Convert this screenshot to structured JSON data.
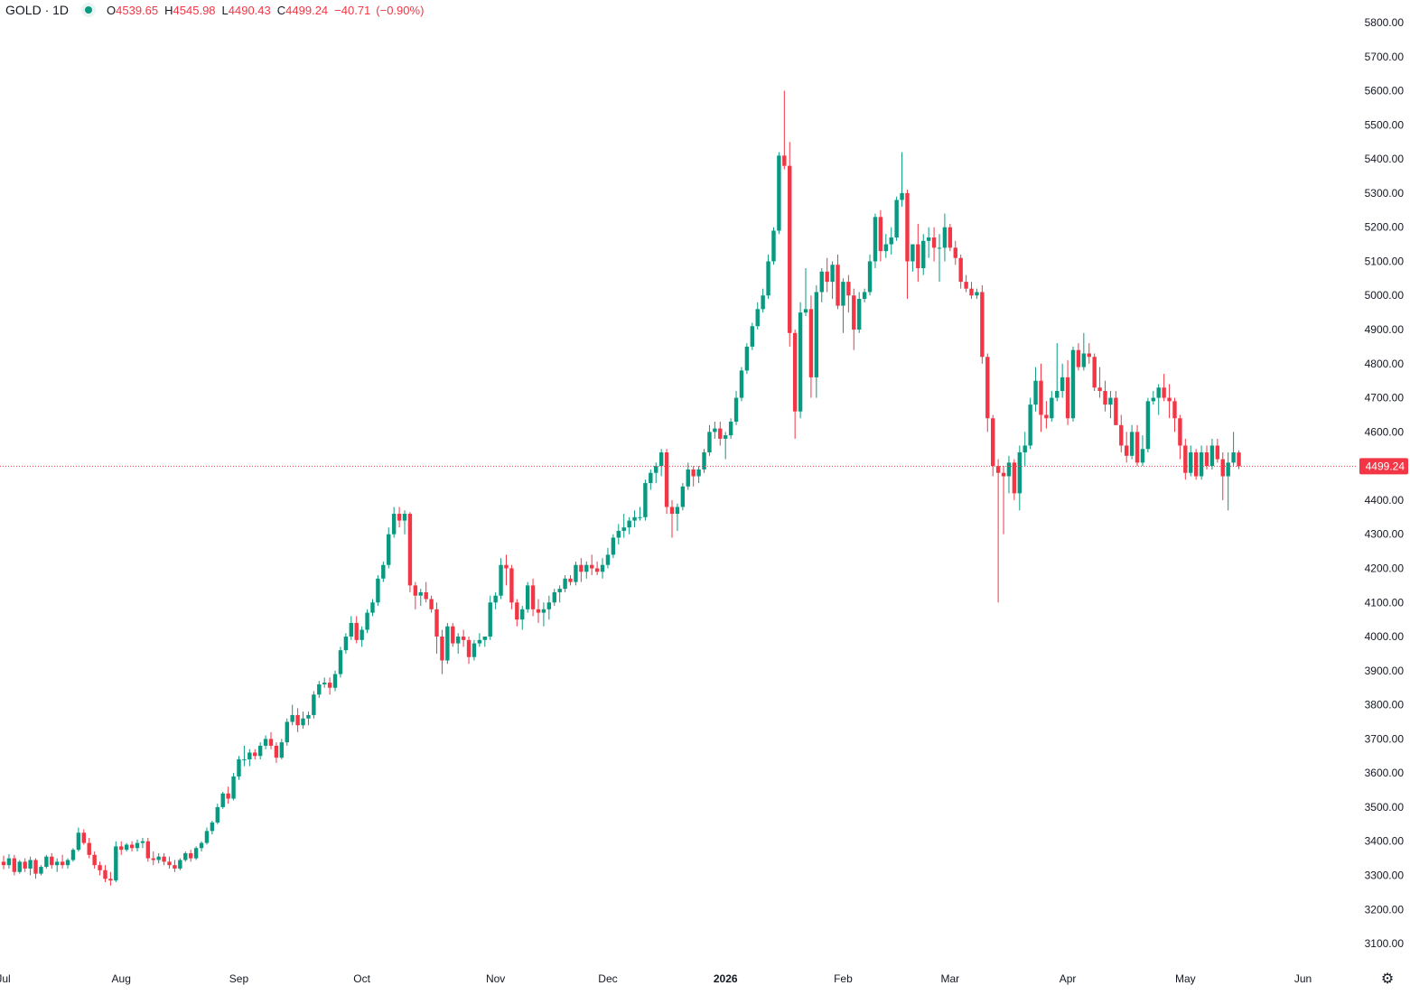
{
  "header": {
    "symbol": "GOLD · 1D",
    "open_label": "O",
    "open": "4539.65",
    "high_label": "H",
    "high": "4545.98",
    "low_label": "L",
    "low": "4490.43",
    "close_label": "C",
    "close": "4499.24",
    "change": "−40.71",
    "change_pct": "(−0.90%)"
  },
  "icons": {
    "status": "market-status-dot-icon",
    "settings": "gear-icon"
  },
  "colors": {
    "up": "#089981",
    "down": "#f23645",
    "text": "#131722",
    "price_line": "#f23645"
  },
  "chart_data": {
    "type": "candlestick",
    "title": "GOLD · 1D",
    "ylim": [
      3050,
      5850
    ],
    "y_ticks": [
      "5800.00",
      "5700.00",
      "5600.00",
      "5500.00",
      "5400.00",
      "5300.00",
      "5200.00",
      "5100.00",
      "5000.00",
      "4900.00",
      "4800.00",
      "4700.00",
      "4600.00",
      "4500.00",
      "4400.00",
      "4300.00",
      "4200.00",
      "4100.00",
      "4000.00",
      "3900.00",
      "3800.00",
      "3700.00",
      "3600.00",
      "3500.00",
      "3400.00",
      "3300.00",
      "3200.00",
      "3100.00"
    ],
    "x_ticks": [
      {
        "label": "Jul",
        "index": 0
      },
      {
        "label": "Aug",
        "index": 22
      },
      {
        "label": "Sep",
        "index": 44
      },
      {
        "label": "Oct",
        "index": 67
      },
      {
        "label": "Nov",
        "index": 92
      },
      {
        "label": "Dec",
        "index": 113
      },
      {
        "label": "2026",
        "index": 135
      },
      {
        "label": "Feb",
        "index": 157
      },
      {
        "label": "Mar",
        "index": 177
      },
      {
        "label": "Apr",
        "index": 199
      },
      {
        "label": "May",
        "index": 221
      },
      {
        "label": "Jun",
        "index": 243
      }
    ],
    "current_price": "4499.24",
    "grid": false,
    "candles": [
      [
        3340,
        3358,
        3318,
        3330
      ],
      [
        3330,
        3362,
        3320,
        3350
      ],
      [
        3350,
        3360,
        3300,
        3310
      ],
      [
        3310,
        3345,
        3305,
        3340
      ],
      [
        3340,
        3350,
        3310,
        3320
      ],
      [
        3320,
        3355,
        3300,
        3345
      ],
      [
        3345,
        3350,
        3290,
        3305
      ],
      [
        3305,
        3330,
        3300,
        3325
      ],
      [
        3325,
        3360,
        3320,
        3355
      ],
      [
        3355,
        3365,
        3320,
        3330
      ],
      [
        3330,
        3350,
        3310,
        3340
      ],
      [
        3340,
        3360,
        3320,
        3330
      ],
      [
        3330,
        3350,
        3320,
        3345
      ],
      [
        3345,
        3380,
        3340,
        3375
      ],
      [
        3375,
        3440,
        3370,
        3425
      ],
      [
        3425,
        3435,
        3390,
        3395
      ],
      [
        3395,
        3410,
        3350,
        3360
      ],
      [
        3360,
        3370,
        3320,
        3330
      ],
      [
        3330,
        3340,
        3300,
        3315
      ],
      [
        3315,
        3330,
        3280,
        3290
      ],
      [
        3290,
        3310,
        3270,
        3285
      ],
      [
        3285,
        3400,
        3280,
        3385
      ],
      [
        3385,
        3400,
        3360,
        3375
      ],
      [
        3375,
        3395,
        3370,
        3390
      ],
      [
        3390,
        3400,
        3370,
        3380
      ],
      [
        3380,
        3405,
        3370,
        3395
      ],
      [
        3395,
        3410,
        3380,
        3400
      ],
      [
        3400,
        3410,
        3340,
        3350
      ],
      [
        3350,
        3370,
        3330,
        3345
      ],
      [
        3345,
        3365,
        3335,
        3355
      ],
      [
        3355,
        3365,
        3330,
        3340
      ],
      [
        3340,
        3355,
        3320,
        3330
      ],
      [
        3330,
        3345,
        3310,
        3320
      ],
      [
        3320,
        3350,
        3315,
        3345
      ],
      [
        3345,
        3370,
        3340,
        3365
      ],
      [
        3365,
        3375,
        3340,
        3350
      ],
      [
        3350,
        3385,
        3345,
        3380
      ],
      [
        3380,
        3400,
        3370,
        3395
      ],
      [
        3395,
        3440,
        3390,
        3430
      ],
      [
        3430,
        3460,
        3420,
        3455
      ],
      [
        3455,
        3510,
        3450,
        3500
      ],
      [
        3500,
        3545,
        3495,
        3540
      ],
      [
        3540,
        3560,
        3510,
        3525
      ],
      [
        3525,
        3600,
        3520,
        3590
      ],
      [
        3590,
        3650,
        3580,
        3640
      ],
      [
        3640,
        3680,
        3620,
        3640
      ],
      [
        3640,
        3670,
        3620,
        3660
      ],
      [
        3660,
        3670,
        3640,
        3650
      ],
      [
        3650,
        3690,
        3640,
        3680
      ],
      [
        3680,
        3710,
        3670,
        3700
      ],
      [
        3700,
        3720,
        3670,
        3680
      ],
      [
        3680,
        3690,
        3630,
        3645
      ],
      [
        3645,
        3700,
        3640,
        3690
      ],
      [
        3690,
        3760,
        3680,
        3750
      ],
      [
        3750,
        3800,
        3740,
        3770
      ],
      [
        3770,
        3790,
        3720,
        3740
      ],
      [
        3740,
        3780,
        3730,
        3760
      ],
      [
        3760,
        3780,
        3740,
        3770
      ],
      [
        3770,
        3840,
        3760,
        3830
      ],
      [
        3830,
        3870,
        3820,
        3860
      ],
      [
        3860,
        3880,
        3850,
        3865
      ],
      [
        3865,
        3880,
        3830,
        3850
      ],
      [
        3850,
        3900,
        3840,
        3890
      ],
      [
        3890,
        3970,
        3880,
        3960
      ],
      [
        3960,
        4010,
        3950,
        4000
      ],
      [
        4000,
        4060,
        3990,
        4040
      ],
      [
        4040,
        4060,
        3980,
        3990
      ],
      [
        3990,
        4030,
        3970,
        4020
      ],
      [
        4020,
        4080,
        4010,
        4070
      ],
      [
        4070,
        4110,
        4060,
        4100
      ],
      [
        4100,
        4180,
        4090,
        4170
      ],
      [
        4170,
        4220,
        4160,
        4210
      ],
      [
        4210,
        4320,
        4200,
        4300
      ],
      [
        4300,
        4380,
        4290,
        4360
      ],
      [
        4360,
        4380,
        4320,
        4340
      ],
      [
        4340,
        4370,
        4300,
        4360
      ],
      [
        4360,
        4365,
        4130,
        4150
      ],
      [
        4150,
        4160,
        4080,
        4120
      ],
      [
        4120,
        4140,
        4090,
        4130
      ],
      [
        4130,
        4160,
        4100,
        4110
      ],
      [
        4110,
        4120,
        4070,
        4080
      ],
      [
        4080,
        4100,
        3950,
        4000
      ],
      [
        4000,
        4020,
        3890,
        3930
      ],
      [
        3930,
        4040,
        3920,
        4030
      ],
      [
        4030,
        4040,
        3970,
        3980
      ],
      [
        3980,
        4010,
        3950,
        4000
      ],
      [
        4000,
        4020,
        3970,
        3990
      ],
      [
        3990,
        4000,
        3920,
        3940
      ],
      [
        3940,
        3990,
        3930,
        3980
      ],
      [
        3980,
        4010,
        3970,
        3990
      ],
      [
        3990,
        4000,
        3970,
        4000
      ],
      [
        4000,
        4120,
        3990,
        4100
      ],
      [
        4100,
        4130,
        4080,
        4120
      ],
      [
        4120,
        4230,
        4110,
        4210
      ],
      [
        4210,
        4240,
        4150,
        4200
      ],
      [
        4200,
        4210,
        4080,
        4100
      ],
      [
        4100,
        4110,
        4030,
        4050
      ],
      [
        4050,
        4090,
        4020,
        4080
      ],
      [
        4080,
        4160,
        4070,
        4150
      ],
      [
        4150,
        4170,
        4060,
        4080
      ],
      [
        4080,
        4110,
        4040,
        4070
      ],
      [
        4070,
        4100,
        4030,
        4080
      ],
      [
        4080,
        4120,
        4050,
        4100
      ],
      [
        4100,
        4140,
        4090,
        4130
      ],
      [
        4130,
        4150,
        4100,
        4140
      ],
      [
        4140,
        4180,
        4130,
        4170
      ],
      [
        4170,
        4180,
        4150,
        4160
      ],
      [
        4160,
        4220,
        4150,
        4210
      ],
      [
        4210,
        4230,
        4160,
        4190
      ],
      [
        4190,
        4220,
        4170,
        4210
      ],
      [
        4210,
        4240,
        4180,
        4200
      ],
      [
        4200,
        4220,
        4180,
        4190
      ],
      [
        4190,
        4230,
        4170,
        4210
      ],
      [
        4210,
        4260,
        4200,
        4240
      ],
      [
        4240,
        4300,
        4230,
        4290
      ],
      [
        4290,
        4330,
        4270,
        4310
      ],
      [
        4310,
        4360,
        4290,
        4320
      ],
      [
        4320,
        4350,
        4300,
        4340
      ],
      [
        4340,
        4370,
        4320,
        4350
      ],
      [
        4350,
        4380,
        4340,
        4350
      ],
      [
        4350,
        4460,
        4340,
        4450
      ],
      [
        4450,
        4490,
        4430,
        4480
      ],
      [
        4480,
        4510,
        4450,
        4500
      ],
      [
        4500,
        4550,
        4470,
        4540
      ],
      [
        4540,
        4550,
        4360,
        4380
      ],
      [
        4380,
        4400,
        4290,
        4360
      ],
      [
        4360,
        4390,
        4310,
        4380
      ],
      [
        4380,
        4450,
        4370,
        4440
      ],
      [
        4440,
        4510,
        4430,
        4490
      ],
      [
        4490,
        4500,
        4440,
        4470
      ],
      [
        4470,
        4500,
        4450,
        4490
      ],
      [
        4490,
        4550,
        4480,
        4540
      ],
      [
        4540,
        4620,
        4530,
        4600
      ],
      [
        4600,
        4630,
        4580,
        4610
      ],
      [
        4610,
        4630,
        4560,
        4580
      ],
      [
        4580,
        4600,
        4520,
        4590
      ],
      [
        4590,
        4640,
        4580,
        4630
      ],
      [
        4630,
        4720,
        4620,
        4700
      ],
      [
        4700,
        4790,
        4690,
        4780
      ],
      [
        4780,
        4860,
        4770,
        4850
      ],
      [
        4850,
        4920,
        4840,
        4910
      ],
      [
        4910,
        4980,
        4900,
        4960
      ],
      [
        4960,
        5020,
        4950,
        5000
      ],
      [
        5000,
        5120,
        4990,
        5100
      ],
      [
        5100,
        5200,
        5090,
        5190
      ],
      [
        5190,
        5420,
        5180,
        5410
      ],
      [
        5410,
        5600,
        5370,
        5380
      ],
      [
        5380,
        5450,
        4850,
        4890
      ],
      [
        4890,
        4900,
        4580,
        4660
      ],
      [
        4660,
        4980,
        4640,
        4950
      ],
      [
        4950,
        5080,
        4940,
        4960
      ],
      [
        4960,
        5000,
        4700,
        4760
      ],
      [
        4760,
        5030,
        4700,
        5010
      ],
      [
        5010,
        5080,
        4980,
        5070
      ],
      [
        5070,
        5110,
        5010,
        5040
      ],
      [
        5040,
        5100,
        4990,
        5090
      ],
      [
        5090,
        5120,
        4960,
        4970
      ],
      [
        4970,
        5050,
        4890,
        5040
      ],
      [
        5040,
        5060,
        4950,
        5000
      ],
      [
        5000,
        5020,
        4840,
        4900
      ],
      [
        4900,
        5010,
        4890,
        4990
      ],
      [
        4990,
        5020,
        4980,
        5010
      ],
      [
        5010,
        5120,
        5000,
        5100
      ],
      [
        5100,
        5240,
        5080,
        5230
      ],
      [
        5230,
        5250,
        5100,
        5130
      ],
      [
        5130,
        5180,
        5110,
        5150
      ],
      [
        5150,
        5200,
        5120,
        5170
      ],
      [
        5170,
        5290,
        5160,
        5280
      ],
      [
        5280,
        5420,
        5260,
        5300
      ],
      [
        5300,
        5310,
        4990,
        5100
      ],
      [
        5100,
        5150,
        5070,
        5150
      ],
      [
        5150,
        5210,
        5040,
        5080
      ],
      [
        5080,
        5180,
        5060,
        5160
      ],
      [
        5160,
        5200,
        5110,
        5170
      ],
      [
        5170,
        5200,
        5100,
        5140
      ],
      [
        5140,
        5180,
        5040,
        5140
      ],
      [
        5140,
        5240,
        5100,
        5200
      ],
      [
        5200,
        5210,
        5130,
        5140
      ],
      [
        5140,
        5160,
        5090,
        5110
      ],
      [
        5110,
        5120,
        5020,
        5040
      ],
      [
        5040,
        5060,
        5010,
        5020
      ],
      [
        5020,
        5040,
        4990,
        5000
      ],
      [
        5000,
        5020,
        4990,
        5010
      ],
      [
        5010,
        5030,
        4800,
        4820
      ],
      [
        4820,
        4830,
        4600,
        4640
      ],
      [
        4640,
        4650,
        4470,
        4500
      ],
      [
        4500,
        4520,
        4100,
        4480
      ],
      [
        4480,
        4500,
        4300,
        4470
      ],
      [
        4470,
        4530,
        4420,
        4510
      ],
      [
        4510,
        4520,
        4400,
        4420
      ],
      [
        4420,
        4560,
        4370,
        4540
      ],
      [
        4540,
        4600,
        4500,
        4560
      ],
      [
        4560,
        4700,
        4550,
        4680
      ],
      [
        4680,
        4790,
        4660,
        4750
      ],
      [
        4750,
        4800,
        4600,
        4650
      ],
      [
        4650,
        4690,
        4610,
        4640
      ],
      [
        4640,
        4720,
        4630,
        4700
      ],
      [
        4700,
        4860,
        4690,
        4720
      ],
      [
        4720,
        4800,
        4700,
        4760
      ],
      [
        4760,
        4810,
        4620,
        4640
      ],
      [
        4640,
        4850,
        4630,
        4840
      ],
      [
        4840,
        4860,
        4780,
        4790
      ],
      [
        4790,
        4890,
        4780,
        4830
      ],
      [
        4830,
        4860,
        4800,
        4820
      ],
      [
        4820,
        4830,
        4720,
        4730
      ],
      [
        4730,
        4790,
        4700,
        4720
      ],
      [
        4720,
        4750,
        4660,
        4680
      ],
      [
        4680,
        4720,
        4640,
        4700
      ],
      [
        4700,
        4720,
        4620,
        4620
      ],
      [
        4620,
        4650,
        4540,
        4560
      ],
      [
        4560,
        4600,
        4510,
        4530
      ],
      [
        4530,
        4620,
        4520,
        4600
      ],
      [
        4600,
        4620,
        4500,
        4510
      ],
      [
        4510,
        4590,
        4500,
        4550
      ],
      [
        4550,
        4700,
        4540,
        4690
      ],
      [
        4690,
        4720,
        4680,
        4700
      ],
      [
        4700,
        4740,
        4650,
        4730
      ],
      [
        4730,
        4770,
        4690,
        4700
      ],
      [
        4700,
        4740,
        4640,
        4690
      ],
      [
        4690,
        4700,
        4600,
        4640
      ],
      [
        4640,
        4650,
        4520,
        4560
      ],
      [
        4560,
        4580,
        4460,
        4480
      ],
      [
        4480,
        4560,
        4470,
        4540
      ],
      [
        4540,
        4550,
        4460,
        4470
      ],
      [
        4470,
        4560,
        4460,
        4540
      ],
      [
        4540,
        4560,
        4490,
        4500
      ],
      [
        4500,
        4580,
        4490,
        4560
      ],
      [
        4560,
        4580,
        4510,
        4520
      ],
      [
        4520,
        4540,
        4400,
        4470
      ],
      [
        4470,
        4540,
        4370,
        4510
      ],
      [
        4510,
        4600,
        4500,
        4540
      ],
      [
        4539.65,
        4545.98,
        4490.43,
        4499.24
      ]
    ]
  }
}
